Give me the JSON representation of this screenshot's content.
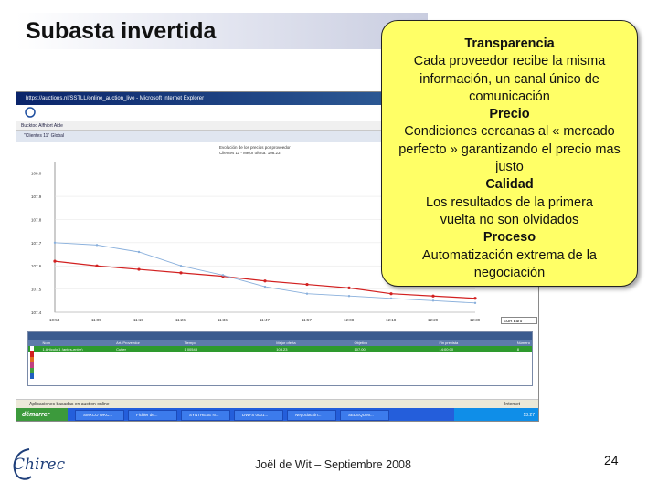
{
  "slide": {
    "title": "Subasta invertida",
    "footer": "Joël de Wit – Septiembre 2008",
    "page_number": "24",
    "logo_text": "Chirec"
  },
  "callout": {
    "sections": [
      {
        "heading": "Transparencia",
        "text": "Cada proveedor recibe la misma información, un canal único de comunicación"
      },
      {
        "heading": "Precio",
        "text": "Condiciones cercanas al « mercado perfecto » garantizando el precio mas justo"
      },
      {
        "heading": "Calidad",
        "text": "Los resultados de la primera vuelta no son olvidados"
      },
      {
        "heading": "Proceso",
        "text": "Automatización extrema de la negociación"
      }
    ]
  },
  "screenshot": {
    "title_bar": "https://auctions.nl/SSTLL/online_auction_live - Microsoft Internet Explorer",
    "menu": "Bucktoo   Alfhiort   Aide",
    "tabs": "\"Clientes 11\"   Global",
    "chart_header_line1": "Evolución de los precios por proveedor",
    "chart_header_line2": "Clientes 11 - Mejor oferta: 108.23",
    "status_left": "Aplicaciones basadas en auction online",
    "status_right": "Internet",
    "start_label": "démarrer",
    "task_items": [
      "SMXCO WKC...",
      "Fichier de...",
      "SYNTHESE N...",
      "DWFS 0001...",
      "Negociación...",
      "SEDEQUIM..."
    ],
    "tray_time": "13:27",
    "grid_tab": "Artículo",
    "grid_columns": [
      "Nom",
      "Art. Proveedor",
      "Tiempo",
      "Mejor oferta",
      "Objetivo",
      "Fin prevista",
      "Número de ofertas"
    ],
    "grid_row": [
      "1  Artículo 1 (antes-entre)",
      "Cutter",
      "1 00543",
      "108.23",
      "107.00",
      "14:00:00",
      "8"
    ],
    "currency_select": "EUR  Euro"
  },
  "chart_data": {
    "type": "line",
    "title": "",
    "x": [
      "10:54",
      "11:05",
      "11:15",
      "11:26",
      "11:36",
      "11:47",
      "11:57",
      "12:08",
      "12:18",
      "12:29",
      "12:39"
    ],
    "yticks": [
      "108.0",
      "107.9",
      "107.8",
      "107.7",
      "107.6",
      "107.5",
      "107.4"
    ],
    "ylim": [
      107.4,
      108.05
    ],
    "series": [
      {
        "color": "#d22020",
        "values": [
          107.62,
          107.6,
          107.585,
          107.57,
          107.555,
          107.535,
          107.52,
          107.505,
          107.48,
          107.47,
          107.46
        ]
      },
      {
        "color": "#8ab0dc",
        "values": [
          107.7,
          107.69,
          107.66,
          107.6,
          107.56,
          107.51,
          107.48,
          107.47,
          107.46,
          107.45,
          107.44
        ]
      }
    ],
    "colors": {
      "line1": "#d22020",
      "line2": "#8ab0dc"
    }
  }
}
